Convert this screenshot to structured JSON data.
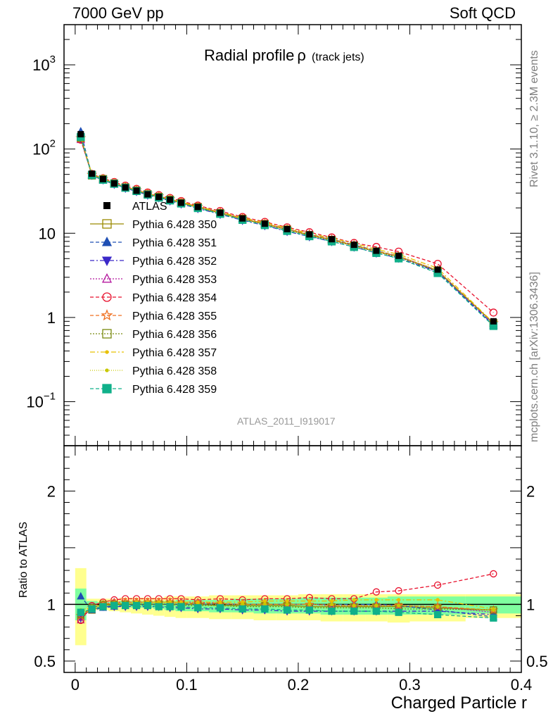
{
  "header": {
    "left": "7000 GeV pp",
    "right": "Soft QCD"
  },
  "side_labels": {
    "rivet": "Rivet 3.1.10, ≥ 2.3M events",
    "mcplots": "mcplots.cern.ch [arXiv:1306.3436]"
  },
  "chart_data": {
    "type": "line",
    "title": "Radial profile",
    "title_symbol": "ρ",
    "title_suffix": "(track jets)",
    "analysis_label": "ATLAS_2011_I919017",
    "xlabel": "Charged Particle r",
    "ylabel_ratio": "Ratio to ATLAS",
    "xlim": [
      -0.01,
      0.4
    ],
    "ylim_main": [
      0.03,
      3000
    ],
    "ylim_ratio": [
      0.4,
      2.4
    ],
    "x_ticks": [
      "0",
      "0.1",
      "0.2",
      "0.3",
      "0.4"
    ],
    "x_tick_values": [
      0,
      0.1,
      0.2,
      0.3,
      0.4
    ],
    "y_ticks_main": [
      {
        "value": 1000,
        "base": "10",
        "exp": "3"
      },
      {
        "value": 100,
        "base": "10",
        "exp": "2"
      },
      {
        "value": 10,
        "base": "10",
        "exp": ""
      },
      {
        "value": 1,
        "base": "1",
        "exp": ""
      },
      {
        "value": 0.1,
        "base": "10",
        "exp": "−1"
      }
    ],
    "y_ticks_ratio": [
      {
        "value": 2,
        "label": "2"
      },
      {
        "value": 1,
        "label": "1"
      },
      {
        "value": 0.5,
        "label": "0.5"
      }
    ],
    "x": [
      0.005,
      0.015,
      0.025,
      0.035,
      0.045,
      0.055,
      0.065,
      0.075,
      0.085,
      0.095,
      0.11,
      0.13,
      0.15,
      0.17,
      0.19,
      0.21,
      0.23,
      0.25,
      0.27,
      0.29,
      0.325,
      0.375
    ],
    "x_edges": [
      0,
      0.01,
      0.02,
      0.03,
      0.04,
      0.05,
      0.06,
      0.07,
      0.08,
      0.09,
      0.1,
      0.12,
      0.14,
      0.16,
      0.18,
      0.2,
      0.22,
      0.24,
      0.26,
      0.28,
      0.3,
      0.35,
      0.4
    ],
    "data": {
      "name": "ATLAS",
      "values": [
        150,
        51,
        44,
        39,
        35,
        32,
        29,
        27,
        25,
        23,
        20.5,
        17.5,
        15,
        13,
        11.2,
        9.7,
        8.5,
        7.3,
        6.2,
        5.4,
        3.7,
        0.9
      ],
      "band_inner": [
        [
          0.86,
          1.14
        ],
        [
          0.97,
          1.03
        ],
        [
          0.98,
          1.02
        ],
        [
          0.98,
          1.02
        ],
        [
          0.98,
          1.03
        ],
        [
          0.97,
          1.03
        ],
        [
          0.97,
          1.03
        ],
        [
          0.96,
          1.03
        ],
        [
          0.95,
          1.03
        ],
        [
          0.94,
          1.04
        ],
        [
          0.94,
          1.04
        ],
        [
          0.93,
          1.04
        ],
        [
          0.93,
          1.05
        ],
        [
          0.92,
          1.05
        ],
        [
          0.92,
          1.05
        ],
        [
          0.92,
          1.06
        ],
        [
          0.91,
          1.06
        ],
        [
          0.91,
          1.06
        ],
        [
          0.91,
          1.06
        ],
        [
          0.91,
          1.07
        ],
        [
          0.91,
          1.07
        ],
        [
          0.92,
          1.07
        ]
      ],
      "band_outer": [
        [
          0.64,
          1.32
        ],
        [
          0.95,
          1.05
        ],
        [
          0.95,
          1.05
        ],
        [
          0.94,
          1.05
        ],
        [
          0.93,
          1.06
        ],
        [
          0.92,
          1.06
        ],
        [
          0.91,
          1.06
        ],
        [
          0.9,
          1.06
        ],
        [
          0.89,
          1.07
        ],
        [
          0.88,
          1.07
        ],
        [
          0.88,
          1.07
        ],
        [
          0.87,
          1.08
        ],
        [
          0.87,
          1.08
        ],
        [
          0.86,
          1.08
        ],
        [
          0.86,
          1.08
        ],
        [
          0.86,
          1.09
        ],
        [
          0.85,
          1.09
        ],
        [
          0.85,
          1.09
        ],
        [
          0.85,
          1.09
        ],
        [
          0.84,
          1.09
        ],
        [
          0.85,
          1.09
        ],
        [
          0.88,
          1.09
        ]
      ]
    },
    "series": [
      {
        "name": "Pythia 6.428 350",
        "color": "#9a8a00",
        "marker": "open-square",
        "dash": "",
        "ratio": [
          0.9,
          0.95,
          0.99,
          1.0,
          1.0,
          1.0,
          1.0,
          1.0,
          1.0,
          1.0,
          1.0,
          0.99,
          0.99,
          0.99,
          0.99,
          0.98,
          0.98,
          0.98,
          0.98,
          0.98,
          0.97,
          0.95
        ]
      },
      {
        "name": "Pythia 6.428 351",
        "color": "#1f4fb4",
        "marker": "triangle-up",
        "dash": "5,3",
        "ratio": [
          1.07,
          0.95,
          0.97,
          0.98,
          0.99,
          1.0,
          1.0,
          1.0,
          1.0,
          1.0,
          1.0,
          1.0,
          1.0,
          1.0,
          1.0,
          1.0,
          1.0,
          1.0,
          1.0,
          0.99,
          0.95,
          0.89
        ]
      },
      {
        "name": "Pythia 6.428 352",
        "color": "#3b28c8",
        "marker": "triangle-down",
        "dash": "6,3,2,3",
        "ratio": [
          0.88,
          0.96,
          0.98,
          0.98,
          0.98,
          0.98,
          0.98,
          0.98,
          0.97,
          0.97,
          0.96,
          0.96,
          0.95,
          0.95,
          0.94,
          0.94,
          0.94,
          0.94,
          0.94,
          0.94,
          0.94,
          0.91
        ]
      },
      {
        "name": "Pythia 6.428 353",
        "color": "#b5179e",
        "marker": "open-triangle",
        "dash": "2,2",
        "ratio": [
          0.86,
          0.98,
          1.0,
          1.02,
          1.02,
          1.02,
          1.02,
          1.02,
          1.02,
          1.02,
          1.02,
          1.01,
          1.0,
          1.0,
          1.0,
          1.0,
          0.99,
          0.99,
          0.99,
          0.99,
          0.98,
          0.93
        ]
      },
      {
        "name": "Pythia 6.428 354",
        "color": "#e8112d",
        "marker": "open-circle",
        "dash": "5,3",
        "ratio": [
          0.86,
          0.99,
          1.02,
          1.04,
          1.05,
          1.05,
          1.05,
          1.05,
          1.05,
          1.05,
          1.04,
          1.05,
          1.04,
          1.05,
          1.05,
          1.06,
          1.05,
          1.05,
          1.11,
          1.12,
          1.17,
          1.27
        ]
      },
      {
        "name": "Pythia 6.428 355",
        "color": "#f07020",
        "marker": "open-star",
        "dash": "5,3",
        "ratio": [
          0.9,
          0.97,
          1.0,
          1.01,
          1.02,
          1.02,
          1.02,
          1.02,
          1.02,
          1.01,
          1.01,
          1.01,
          1.0,
          1.0,
          1.0,
          1.0,
          0.99,
          0.99,
          0.99,
          0.99,
          0.98,
          0.95
        ]
      },
      {
        "name": "Pythia 6.428 356",
        "color": "#7a8a10",
        "marker": "open-square",
        "dash": "2,2",
        "ratio": [
          0.91,
          0.97,
          1.0,
          1.0,
          1.0,
          1.0,
          1.0,
          1.0,
          1.0,
          0.99,
          0.99,
          0.99,
          0.98,
          0.98,
          0.98,
          0.97,
          0.97,
          0.97,
          0.97,
          0.96,
          0.96,
          0.95
        ]
      },
      {
        "name": "Pythia 6.428 357",
        "color": "#e8c000",
        "marker": "small-dot",
        "dash": "7,3,2,3",
        "ratio": [
          0.93,
          0.98,
          1.0,
          1.01,
          1.01,
          1.02,
          1.02,
          1.02,
          1.02,
          1.02,
          1.02,
          1.02,
          1.02,
          1.03,
          1.03,
          1.03,
          1.03,
          1.04,
          1.04,
          1.04,
          1.04,
          0.96
        ]
      },
      {
        "name": "Pythia 6.428 358",
        "color": "#c8c800",
        "marker": "small-dot",
        "dash": "1,2",
        "ratio": [
          0.95,
          0.98,
          1.0,
          1.01,
          1.01,
          1.01,
          1.01,
          1.01,
          1.01,
          1.0,
          1.0,
          1.0,
          1.0,
          1.0,
          1.0,
          1.0,
          1.0,
          0.99,
          0.99,
          0.99,
          0.98,
          0.95
        ]
      },
      {
        "name": "Pythia 6.428 359",
        "color": "#10b08a",
        "marker": "filled-square",
        "dash": "5,3",
        "ratio": [
          0.93,
          0.96,
          0.98,
          0.99,
          0.99,
          0.99,
          0.99,
          0.98,
          0.98,
          0.98,
          0.97,
          0.97,
          0.96,
          0.96,
          0.95,
          0.95,
          0.94,
          0.94,
          0.94,
          0.93,
          0.91,
          0.88
        ]
      }
    ]
  }
}
